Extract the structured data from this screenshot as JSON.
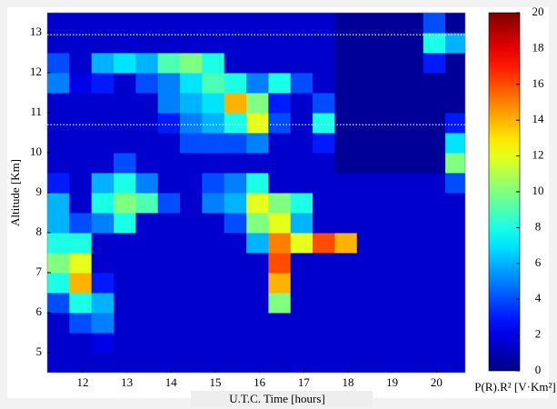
{
  "chart_data": {
    "type": "heatmap",
    "xlabel": "U.T.C. Time [hours]",
    "ylabel": "Altitude [Km]",
    "colorbar_label": "P(R).R² [V·Km²]",
    "x": [
      11.45,
      11.95,
      12.45,
      12.95,
      13.45,
      13.95,
      14.45,
      14.95,
      15.45,
      15.95,
      16.45,
      16.95,
      17.45,
      17.95,
      18.45,
      18.95,
      19.45,
      19.95,
      20.45
    ],
    "y": [
      4.75,
      5.25,
      5.75,
      6.25,
      6.75,
      7.25,
      7.75,
      8.25,
      8.75,
      9.25,
      9.75,
      10.25,
      10.75,
      11.25,
      11.75,
      12.25,
      12.75,
      13.25
    ],
    "z": [
      [
        1.5,
        1.5,
        1.5,
        1.5,
        1.5,
        1.5,
        1.5,
        1.5,
        1.5,
        1.5,
        1.5,
        1.5,
        1.5,
        1.5,
        1.5,
        1.5,
        1.5,
        1.5,
        1.5
      ],
      [
        1.5,
        1.5,
        2,
        1.5,
        1.5,
        1.5,
        1.5,
        1.5,
        1.5,
        1.5,
        1.5,
        1.5,
        1.5,
        1.5,
        1.5,
        1.5,
        1.5,
        1.5,
        1.5
      ],
      [
        1.5,
        4,
        5,
        1.5,
        1.5,
        1.5,
        1.5,
        1.5,
        1.5,
        1.5,
        1.5,
        1.5,
        1.5,
        1.5,
        1.5,
        1.5,
        1.5,
        1.5,
        1.5
      ],
      [
        4,
        8,
        6,
        1.5,
        1.5,
        1.5,
        1.5,
        1.5,
        1.5,
        1.5,
        10,
        1.5,
        1.5,
        1.5,
        1.5,
        1.5,
        1.5,
        1.5,
        1.5
      ],
      [
        8,
        14,
        3,
        1.5,
        1.5,
        1.5,
        1.5,
        1.5,
        1.5,
        1.5,
        14,
        1.5,
        1.5,
        1.5,
        1.5,
        1.5,
        1.5,
        1.5,
        1.5
      ],
      [
        10,
        12,
        1.5,
        1.5,
        1.5,
        1.5,
        1.5,
        1.5,
        1.5,
        1.5,
        16,
        1.5,
        1.5,
        1.5,
        1.5,
        1.5,
        1.5,
        1.5,
        1.5
      ],
      [
        8,
        8,
        1.5,
        1.5,
        1.5,
        1.5,
        1.5,
        1.5,
        1.5,
        6,
        15,
        12,
        16,
        14,
        1.5,
        1.5,
        1.5,
        1.5,
        1.5
      ],
      [
        6,
        4,
        5,
        8,
        1.5,
        1.5,
        1.5,
        1.5,
        4,
        10,
        12,
        6,
        1.5,
        1.5,
        1.5,
        1.5,
        1.5,
        1.5,
        1.5
      ],
      [
        6,
        1.5,
        8,
        10,
        9,
        4,
        1.5,
        5,
        6,
        12,
        10,
        8,
        1.5,
        1.5,
        1.5,
        1.5,
        1.5,
        1.5,
        1.5
      ],
      [
        3,
        1.5,
        6,
        8,
        5,
        1.5,
        1.5,
        4,
        5,
        8,
        1.5,
        1.5,
        1.5,
        1.5,
        1.5,
        1.5,
        1.5,
        1.5,
        4
      ],
      [
        1.5,
        1.5,
        1.5,
        4,
        1.5,
        1.5,
        1.5,
        1.5,
        1.5,
        1.5,
        1.5,
        1.5,
        1.5,
        0.5,
        0.5,
        0.5,
        0.5,
        0.5,
        10
      ],
      [
        1.5,
        1.5,
        1.5,
        1.5,
        1.5,
        1.5,
        4,
        4,
        4,
        5,
        1.5,
        1.5,
        3,
        0.5,
        0.5,
        0.5,
        0.5,
        0.5,
        7
      ],
      [
        1.5,
        1.5,
        1.5,
        1.5,
        1.5,
        3,
        5,
        6,
        8,
        12,
        4,
        1.5,
        8,
        0.5,
        0.5,
        0.5,
        0.5,
        0.5,
        3
      ],
      [
        1.5,
        1.5,
        1.5,
        1.5,
        1.5,
        5,
        6,
        7,
        14,
        10,
        3,
        1.5,
        4,
        0.5,
        0.5,
        0.5,
        0.5,
        0.5,
        0.5
      ],
      [
        5,
        2,
        3,
        1.5,
        4,
        5,
        7,
        9,
        8,
        5,
        8,
        4,
        1.5,
        0.5,
        0.5,
        0.5,
        0.5,
        0.5,
        0.5
      ],
      [
        4,
        1.5,
        6,
        7,
        6,
        9,
        10,
        8,
        1.5,
        1.5,
        1.5,
        1.5,
        1.5,
        0.5,
        0.5,
        0.5,
        0.5,
        3,
        0.5
      ],
      [
        1.5,
        1.5,
        1.5,
        1.5,
        1.5,
        1.5,
        1.5,
        1.5,
        1.5,
        1.5,
        1.5,
        1.5,
        1.5,
        0.5,
        0.5,
        0.5,
        0.5,
        8,
        6
      ],
      [
        1.5,
        1.5,
        1.5,
        1.5,
        1.5,
        1.5,
        1.5,
        1.5,
        1.5,
        1.5,
        1.5,
        1.5,
        1.5,
        0.5,
        0.5,
        0.5,
        0.5,
        4,
        0.5
      ]
    ],
    "xlim": [
      11.2,
      20.65
    ],
    "ylim": [
      4.5,
      13.5
    ],
    "xticks": [
      12,
      13,
      14,
      15,
      16,
      17,
      18,
      19,
      20
    ],
    "yticks": [
      5,
      6,
      7,
      8,
      9,
      10,
      11,
      12,
      13
    ],
    "clim": [
      0,
      20
    ],
    "cticks": [
      0,
      2,
      4,
      6,
      8,
      10,
      12,
      14,
      16,
      18,
      20
    ],
    "colormap": "jet",
    "hlines": [
      12.95,
      10.7
    ]
  }
}
